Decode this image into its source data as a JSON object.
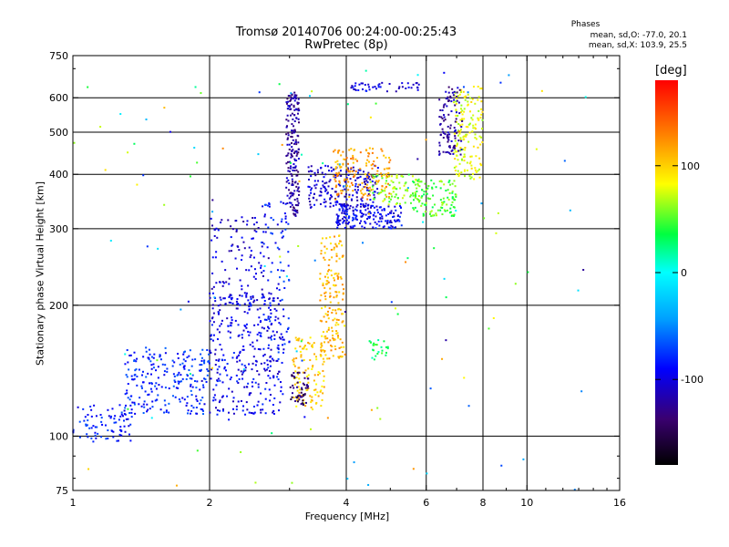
{
  "chart_data": {
    "type": "scatter",
    "title": "Tromsø 20140706 00:24:00-00:25:43",
    "subtitle": "RwPretec (8p)",
    "xlabel": "Frequency [MHz]",
    "ylabel": "Stationary phase Virtual Height [km]",
    "x_scale": "log",
    "y_scale": "log",
    "xlim": [
      1,
      16
    ],
    "ylim": [
      75,
      750
    ],
    "x_ticks": [
      1,
      2,
      4,
      6,
      8,
      10,
      16
    ],
    "x_tick_labels": [
      "1",
      "2",
      "4",
      "6",
      "8",
      "10",
      "16"
    ],
    "y_ticks": [
      75,
      100,
      200,
      300,
      400,
      500,
      600,
      750
    ],
    "y_tick_labels": [
      "75",
      "100",
      "200",
      "300",
      "400",
      "500",
      "600",
      "750"
    ],
    "grid": true,
    "stats": {
      "heading": "Phases",
      "o_line": "mean, sd,O: -77.0, 20.1",
      "x_line": "mean, sd,X: 103.9, 25.5"
    },
    "colorbar": {
      "unit": "[deg]",
      "range": [
        -180,
        180
      ],
      "ticks": [
        100,
        0,
        -100
      ],
      "tick_labels": [
        "100",
        "0",
        "-100"
      ],
      "colormap": "rainbow"
    },
    "clusters": [
      {
        "x": [
          1.0,
          1.35
        ],
        "y": [
          97,
          118
        ],
        "phase": -85,
        "count": 80
      },
      {
        "x": [
          1.3,
          2.0
        ],
        "y": [
          112,
          160
        ],
        "phase": -80,
        "count": 230
      },
      {
        "x": [
          2.0,
          2.9
        ],
        "y": [
          112,
          215
        ],
        "phase": -95,
        "count": 330
      },
      {
        "x": [
          2.0,
          2.7
        ],
        "y": [
          200,
          320
        ],
        "phase": -105,
        "count": 110
      },
      {
        "x": [
          2.6,
          3.0
        ],
        "y": [
          150,
          350
        ],
        "phase": -85,
        "count": 90
      },
      {
        "x": [
          2.95,
          3.15
        ],
        "y": [
          320,
          620
        ],
        "phase": -120,
        "count": 190
      },
      {
        "x": [
          3.05,
          3.6
        ],
        "y": [
          115,
          170
        ],
        "phase": 100,
        "count": 110
      },
      {
        "x": [
          3.0,
          3.3
        ],
        "y": [
          118,
          140
        ],
        "phase": -140,
        "count": 50
      },
      {
        "x": [
          3.5,
          3.95
        ],
        "y": [
          150,
          290
        ],
        "phase": 110,
        "count": 170
      },
      {
        "x": [
          3.3,
          4.7
        ],
        "y": [
          335,
          420
        ],
        "phase": -105,
        "count": 200
      },
      {
        "x": [
          3.8,
          5.3
        ],
        "y": [
          300,
          340
        ],
        "phase": -95,
        "count": 170
      },
      {
        "x": [
          3.75,
          5.0
        ],
        "y": [
          350,
          460
        ],
        "phase": 120,
        "count": 150
      },
      {
        "x": [
          4.5,
          5.8
        ],
        "y": [
          340,
          400
        ],
        "phase": 60,
        "count": 90
      },
      {
        "x": [
          5.6,
          7.0
        ],
        "y": [
          320,
          390
        ],
        "phase": 50,
        "count": 120
      },
      {
        "x": [
          6.9,
          8.0
        ],
        "y": [
          390,
          640
        ],
        "phase": 80,
        "count": 160
      },
      {
        "x": [
          6.4,
          7.2
        ],
        "y": [
          440,
          640
        ],
        "phase": -120,
        "count": 100
      },
      {
        "x": [
          4.0,
          5.8
        ],
        "y": [
          620,
          650
        ],
        "phase": -100,
        "count": 45
      },
      {
        "x": [
          4.5,
          5.0
        ],
        "y": [
          150,
          168
        ],
        "phase": 30,
        "count": 25
      },
      {
        "x": [
          1.0,
          14.0
        ],
        "y": [
          75,
          700
        ],
        "phase": 0,
        "count": 130
      }
    ]
  }
}
